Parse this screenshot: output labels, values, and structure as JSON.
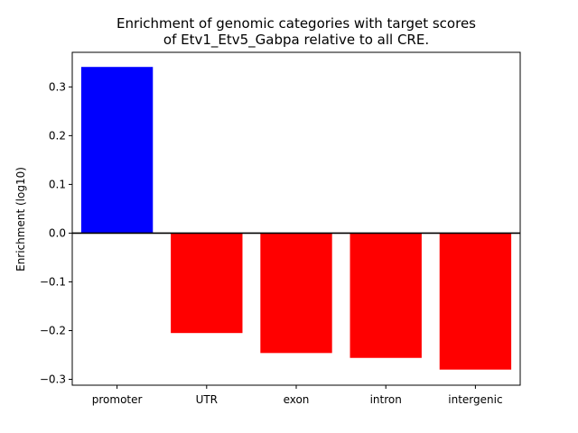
{
  "chart_data": {
    "type": "bar",
    "title_lines": [
      "Enrichment of genomic categories with target scores",
      "of Etv1_Etv5_Gabpa relative to all CRE."
    ],
    "ylabel": "Enrichment (log10)",
    "xlabel": "",
    "categories": [
      "promoter",
      "UTR",
      "exon",
      "intron",
      "intergenic"
    ],
    "values": [
      0.341,
      -0.205,
      -0.246,
      -0.256,
      -0.28
    ],
    "ylim": [
      -0.312,
      0.371
    ],
    "yticks": [
      -0.3,
      -0.2,
      -0.1,
      0.0,
      0.1,
      0.2,
      0.3
    ],
    "ytick_labels": [
      "−0.3",
      "−0.2",
      "−0.1",
      "0.0",
      "0.1",
      "0.2",
      "0.3"
    ],
    "positive_color": "#0000ff",
    "negative_color": "#ff0000",
    "zero_line": true,
    "grid": false,
    "legend": "none"
  }
}
